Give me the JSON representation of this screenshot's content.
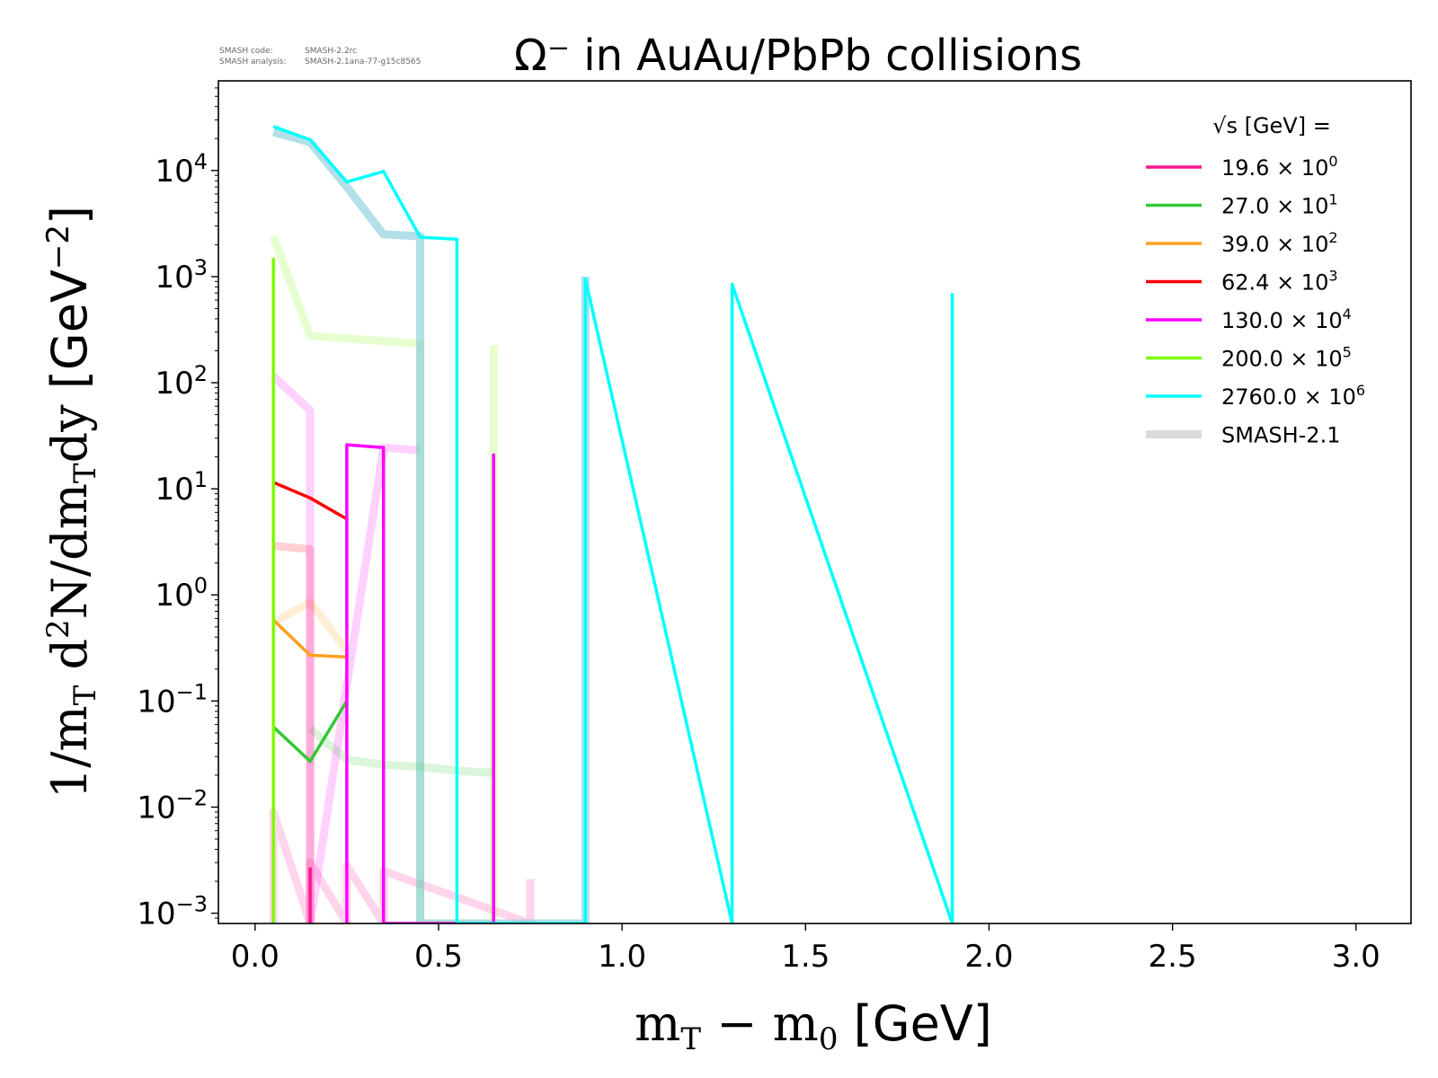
{
  "header": {
    "smash_code_label": "SMASH code:",
    "smash_code_value": "SMASH-2.2rc",
    "smash_analysis_label": "SMASH analysis:",
    "smash_analysis_value": "SMASH-2.1ana-77-g15c8565"
  },
  "chart_data": {
    "type": "line",
    "title": "Ω⁻ in AuAu/PbPb collisions",
    "xlabel": "mT − m0 [GeV]",
    "ylabel": "1/mT d²N/dmTdy [GeV⁻²]",
    "xlim": [
      -0.1,
      3.15
    ],
    "ylim": [
      0.0008,
      70000
    ],
    "yscale": "log",
    "grid": false,
    "legend_position": "top-right",
    "legend_title": "√s [GeV] =",
    "x_ticks": [
      0.0,
      0.5,
      1.0,
      1.5,
      2.0,
      2.5,
      3.0
    ],
    "x_tick_labels": [
      "0.0",
      "0.5",
      "1.0",
      "1.5",
      "2.0",
      "2.5",
      "3.0"
    ],
    "y_ticks": [
      0.001,
      0.01,
      0.1,
      1,
      10,
      100,
      1000,
      10000
    ],
    "y_tick_labels": [
      {
        "base": "10",
        "exp": "−3"
      },
      {
        "base": "10",
        "exp": "−2"
      },
      {
        "base": "10",
        "exp": "−1"
      },
      {
        "base": "10",
        "exp": "0"
      },
      {
        "base": "10",
        "exp": "1"
      },
      {
        "base": "10",
        "exp": "2"
      },
      {
        "base": "10",
        "exp": "3"
      },
      {
        "base": "10",
        "exp": "4"
      }
    ],
    "series": [
      {
        "name": "19.6 × 10⁰",
        "label_base": "19.6",
        "label_exp": "0",
        "color": "#ff1493",
        "data": [
          [
            0.15,
            0.0008
          ],
          [
            0.15,
            0.0027
          ]
        ],
        "smash": [
          [
            0.05,
            0.0008
          ],
          [
            0.05,
            0.009
          ],
          [
            0.15,
            0.0008
          ],
          [
            0.15,
            0.003
          ],
          [
            0.25,
            0.0008
          ],
          [
            0.25,
            0.0028
          ],
          [
            0.35,
            0.0008
          ],
          [
            0.35,
            0.0025
          ],
          [
            0.75,
            0.0008
          ],
          [
            0.75,
            0.0021
          ]
        ]
      },
      {
        "name": "27.0 × 10¹",
        "label_base": "27.0",
        "label_exp": "1",
        "color": "#32c832",
        "data": [
          [
            0.05,
            0.057
          ],
          [
            0.15,
            0.027
          ],
          [
            0.25,
            0.1
          ]
        ],
        "smash": [
          [
            0.15,
            0.055
          ],
          [
            0.25,
            0.028
          ],
          [
            0.35,
            0.025
          ],
          [
            0.45,
            0.024
          ],
          [
            0.55,
            0.022
          ],
          [
            0.65,
            0.021
          ]
        ]
      },
      {
        "name": "39.0 × 10²",
        "label_base": "39.0",
        "label_exp": "2",
        "color": "#ffa01e",
        "data": [
          [
            0.05,
            0.58
          ],
          [
            0.15,
            0.27
          ],
          [
            0.25,
            0.26
          ]
        ],
        "smash": [
          [
            0.05,
            0.55
          ],
          [
            0.15,
            0.85
          ],
          [
            0.25,
            0.3
          ]
        ]
      },
      {
        "name": "62.4 × 10³",
        "label_base": "62.4",
        "label_exp": "3",
        "color": "#ff0000",
        "data": [
          [
            0.05,
            11.5
          ],
          [
            0.15,
            8.2
          ],
          [
            0.25,
            5.2
          ]
        ],
        "smash": [
          [
            0.05,
            2.9
          ],
          [
            0.15,
            2.7
          ],
          [
            0.15,
            0.0008
          ]
        ]
      },
      {
        "name": "130.0 × 10⁴",
        "label_base": "130.0",
        "label_exp": "4",
        "color": "#ff00ff",
        "data": [
          [
            0.25,
            0.0008
          ],
          [
            0.25,
            26
          ],
          [
            0.35,
            24.5
          ],
          [
            0.35,
            0.0008
          ],
          [
            0.65,
            0.0008
          ],
          [
            0.65,
            21.5
          ]
        ],
        "smash": [
          [
            0.05,
            115
          ],
          [
            0.15,
            55
          ],
          [
            0.15,
            0.0008
          ],
          [
            0.35,
            24.5
          ],
          [
            0.45,
            23
          ]
        ]
      },
      {
        "name": "200.0 × 10⁵",
        "label_base": "200.0",
        "label_exp": "5",
        "color": "#7cfc00",
        "data": [
          [
            0.05,
            0.0008
          ],
          [
            0.05,
            1500
          ]
        ],
        "smash": [
          [
            0.05,
            2400
          ],
          [
            0.15,
            275
          ],
          [
            0.45,
            235
          ],
          [
            0.45,
            0.0008
          ],
          [
            0.65,
            0.0008
          ],
          [
            0.65,
            225
          ]
        ]
      },
      {
        "name": "2760.0 × 10⁶",
        "label_base": "2760.0",
        "label_exp": "6",
        "color": "#00ffff",
        "data": [
          [
            0.05,
            26000
          ],
          [
            0.15,
            19500
          ],
          [
            0.25,
            7800
          ],
          [
            0.35,
            9800
          ],
          [
            0.45,
            2350
          ],
          [
            0.55,
            2250
          ],
          [
            0.55,
            0.0008
          ],
          [
            0.9,
            0.0008
          ],
          [
            0.9,
            950
          ],
          [
            1.3,
            0.0008
          ],
          [
            1.3,
            850
          ],
          [
            1.9,
            0.0008
          ],
          [
            1.9,
            700
          ]
        ],
        "smash": [
          [
            0.05,
            23000
          ],
          [
            0.15,
            18500
          ],
          [
            0.25,
            7000
          ],
          [
            0.35,
            2500
          ],
          [
            0.45,
            2400
          ],
          [
            0.45,
            0.0008
          ],
          [
            0.9,
            0.0008
          ],
          [
            0.9,
            1000
          ]
        ]
      }
    ],
    "smash_legend_label": "SMASH-2.1",
    "smash_legend_color": "#cccccc"
  }
}
